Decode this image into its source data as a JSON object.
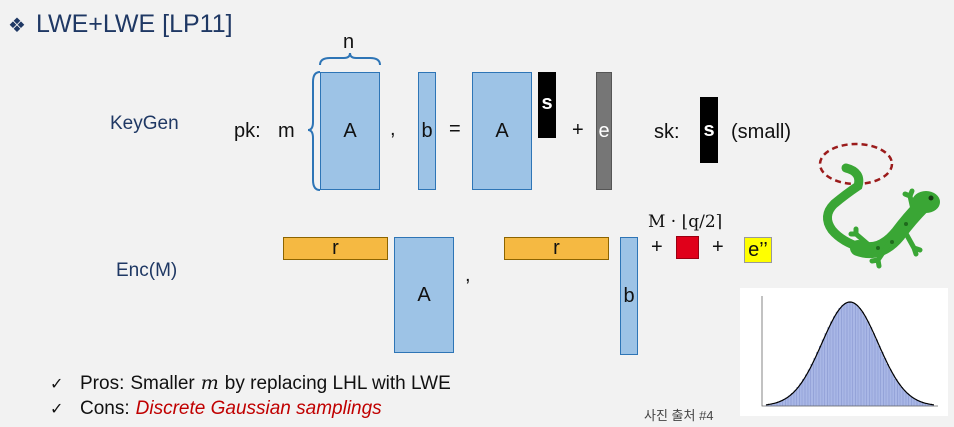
{
  "slide": {
    "title": "LWE+LWE [LP11]",
    "title_bullet_icon": "diamond-bullet-icon",
    "keygen": {
      "label": "KeyGen",
      "pk_prefix": "pk:",
      "rows_label": "m",
      "cols_label": "n",
      "matrix_A": "A",
      "comma": ",",
      "vector_b": "b",
      "equals": "=",
      "matrix_A_rhs": "A",
      "secret_s": "s",
      "plus": "+",
      "error_e": "e",
      "sk_prefix": "sk:",
      "sk_s": "s",
      "sk_note": "(small)"
    },
    "enc": {
      "label": "Enc(M)",
      "r_left": "r",
      "matrix_A": "A",
      "comma": ",",
      "r_right": "r",
      "vector_b": "b",
      "plus1": "+",
      "plus2": "+",
      "message_label": "M · ⌊q/2⌉",
      "error_e2": "e’’"
    },
    "bullets": {
      "pros_label": "Pros:",
      "pros_text_before": "Smaller",
      "pros_math": "m",
      "pros_text_after": "by replacing LHL with LWE",
      "cons_label": "Cons:",
      "cons_text": "Discrete Gaussian samplings",
      "check_icon": "check-icon"
    },
    "credit": "사진 출처 #4",
    "colors": {
      "title": "#1f3864",
      "blue_fill": "#9dc3e6",
      "orange_fill": "#f5b942",
      "red_fill": "#e0001a",
      "yellow_fill": "#ffff00",
      "cons_text": "#c00000",
      "lizard_green": "#3aa635",
      "circle_dash": "#9b1b1b"
    }
  }
}
